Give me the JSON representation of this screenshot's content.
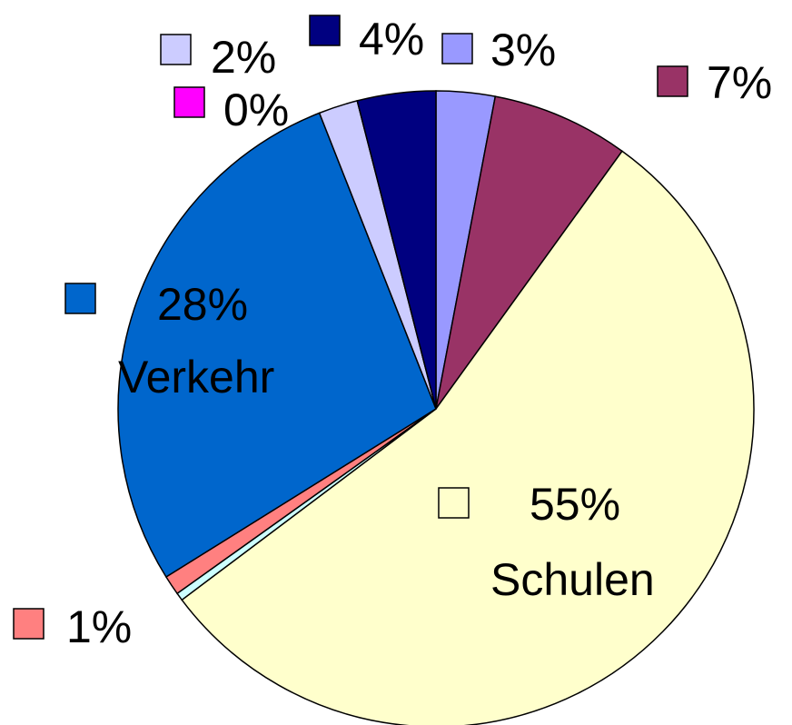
{
  "chart_data": {
    "type": "pie",
    "categories": [
      null,
      null,
      "Schulen",
      null,
      null,
      "Verkehr",
      null,
      null,
      null
    ],
    "values": [
      3,
      7,
      55,
      0.4,
      1,
      28,
      2,
      0,
      4
    ],
    "value_labels": [
      "3%",
      "7%",
      "55%",
      null,
      "1%",
      "28%",
      "2%",
      "0%",
      "4%"
    ],
    "colors": [
      "#9999ff",
      "#993366",
      "#ffffcc",
      "#ccffff",
      "#ff8080",
      "#0066cc",
      "#ccccff",
      "#ff00ff",
      "#000080"
    ]
  }
}
